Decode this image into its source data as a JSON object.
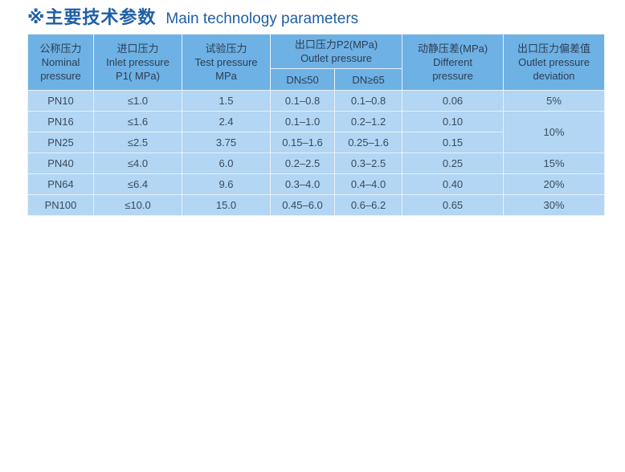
{
  "title": {
    "symbol": "※",
    "cn": "主要技术参数",
    "en": "Main technology parameters"
  },
  "colors": {
    "title": "#1f5fa6",
    "header_bg": "#6eb1e4",
    "body_bg": "#b2d6f3"
  },
  "headers": {
    "nominal": {
      "cn": "公称压力",
      "en1": "Nominal",
      "en2": "pressure"
    },
    "inlet": {
      "cn": "进口压力",
      "en1": "Inlet pressure",
      "en2": "P1( MPa)"
    },
    "test": {
      "cn": "试验压力",
      "en1": "Test pressure",
      "en2": "MPa"
    },
    "outlet": {
      "cn": "出口压力P2(MPa)",
      "en1": "Outlet pressure",
      "sub1": "DN≤50",
      "sub2": "DN≥65"
    },
    "diff": {
      "cn": "动静压差(MPa)",
      "en1": "Different",
      "en2": "pressure"
    },
    "deviation": {
      "cn": "出口压力偏差值",
      "en1": "Outlet pressure",
      "en2": "deviation"
    }
  },
  "rows": [
    {
      "pn": "PN10",
      "inlet": "≤1.0",
      "test": "1.5",
      "dn50": "0.1–0.8",
      "dn65": "0.1–0.8",
      "diff": "0.06",
      "dev": "5%"
    },
    {
      "pn": "PN16",
      "inlet": "≤1.6",
      "test": "2.4",
      "dn50": "0.1–1.0",
      "dn65": "0.2–1.2",
      "diff": "0.10",
      "dev": "10%"
    },
    {
      "pn": "PN25",
      "inlet": "≤2.5",
      "test": "3.75",
      "dn50": "0.15–1.6",
      "dn65": "0.25–1.6",
      "diff": "0.15"
    },
    {
      "pn": "PN40",
      "inlet": "≤4.0",
      "test": "6.0",
      "dn50": "0.2–2.5",
      "dn65": "0.3–2.5",
      "diff": "0.25",
      "dev": "15%"
    },
    {
      "pn": "PN64",
      "inlet": "≤6.4",
      "test": "9.6",
      "dn50": "0.3–4.0",
      "dn65": "0.4–4.0",
      "diff": "0.40",
      "dev": "20%"
    },
    {
      "pn": "PN100",
      "inlet": "≤10.0",
      "test": "15.0",
      "dn50": "0.45–6.0",
      "dn65": "0.6–6.2",
      "diff": "0.65",
      "dev": "30%"
    }
  ]
}
